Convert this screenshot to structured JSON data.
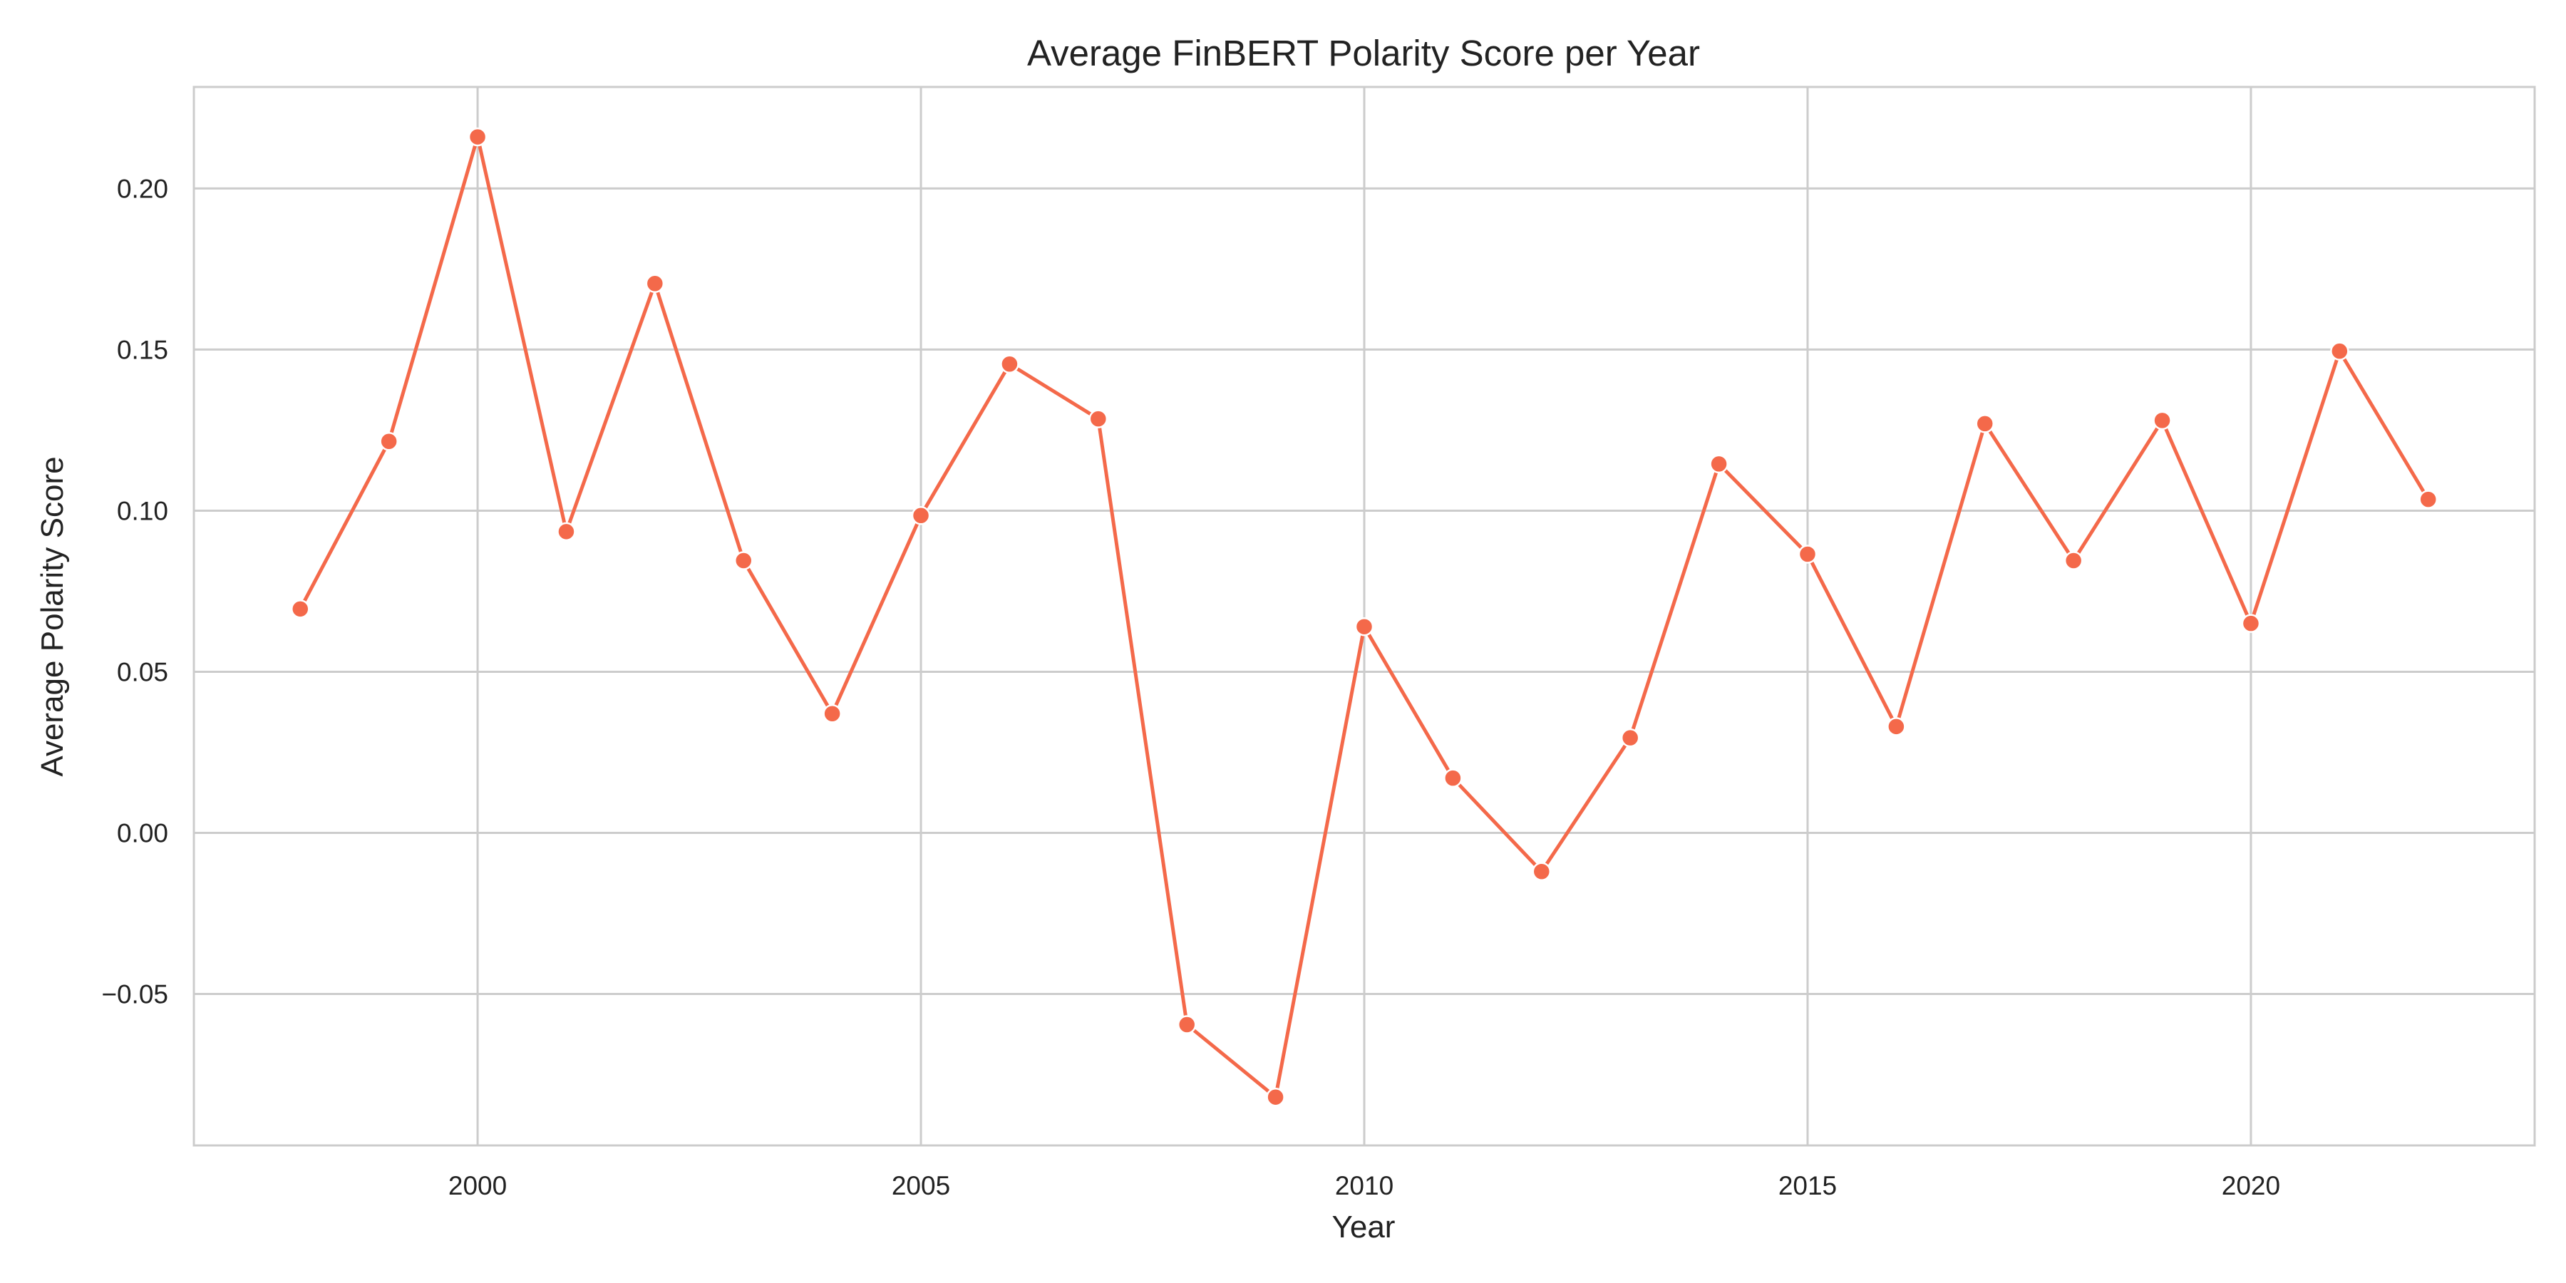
{
  "chart_data": {
    "type": "line",
    "title": "Average FinBERT Polarity Score per Year",
    "xlabel": "Year",
    "ylabel": "Average Polarity Score",
    "x": [
      1998,
      1999,
      2000,
      2001,
      2002,
      2003,
      2004,
      2005,
      2006,
      2007,
      2008,
      2009,
      2010,
      2011,
      2012,
      2013,
      2014,
      2015,
      2016,
      2017,
      2018,
      2019,
      2020,
      2021,
      2022
    ],
    "series": [
      {
        "values": [
          0.0695,
          0.1215,
          0.216,
          0.0935,
          0.1705,
          0.0845,
          0.037,
          0.0985,
          0.1455,
          0.1285,
          -0.0595,
          -0.082,
          0.064,
          0.017,
          -0.012,
          0.0295,
          0.1145,
          0.0865,
          0.033,
          0.127,
          0.0845,
          0.128,
          0.065,
          0.1495,
          0.1035
        ],
        "color": "#f4694a"
      }
    ],
    "xlim": [
      1996.8,
      2023.2
    ],
    "ylim": [
      -0.097,
      0.2315
    ],
    "x_ticks": [
      2000,
      2005,
      2010,
      2015,
      2020
    ],
    "x_tick_labels": [
      "2000",
      "2005",
      "2010",
      "2015",
      "2020"
    ],
    "y_ticks": [
      -0.05,
      0.0,
      0.05,
      0.1,
      0.15,
      0.2
    ],
    "y_tick_labels": [
      "−0.05",
      "0.00",
      "0.05",
      "0.10",
      "0.15",
      "0.20"
    ],
    "grid": true,
    "legend": "none",
    "colors": {
      "line": "#f4694a",
      "marker_edge": "#ffffff",
      "grid": "#cccccc",
      "frame": "#cccccc"
    }
  }
}
